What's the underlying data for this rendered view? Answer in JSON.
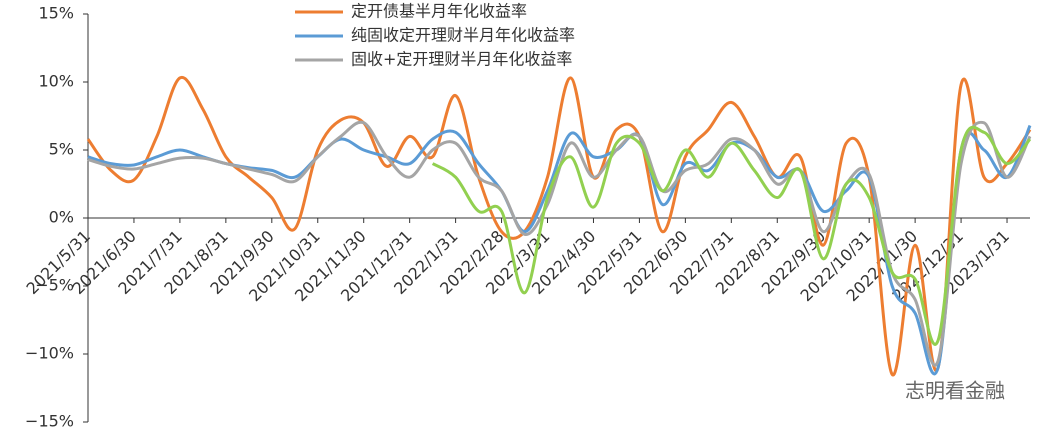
{
  "chart_data": {
    "type": "line",
    "categories": [
      "2021/5/31",
      null,
      "2021/6/30",
      null,
      "2021/7/31",
      null,
      "2021/8/31",
      null,
      "2021/9/30",
      null,
      "2021/10/31",
      null,
      "2021/11/30",
      null,
      "2021/12/31",
      null,
      "2022/1/31",
      null,
      "2022/2/28",
      null,
      "2022/3/31",
      null,
      "2022/4/30",
      null,
      "2022/5/31",
      null,
      "2022/6/30",
      null,
      "2022/7/31",
      null,
      "2022/8/31",
      null,
      "2022/9/30",
      null,
      "2022/10/31",
      null,
      "2022/11/30",
      null,
      "2022/12/31",
      null,
      "2023/1/31",
      null
    ],
    "series": [
      {
        "name": "定开债基半月年化收益率",
        "color": "#ed7d31",
        "values": [
          5.8,
          3.5,
          2.8,
          6,
          10.3,
          8,
          4.5,
          3,
          1.5,
          -0.8,
          5,
          7.2,
          7,
          3.8,
          6,
          4.5,
          9,
          3,
          -1,
          -1,
          3,
          10.3,
          3,
          6.5,
          6,
          -1,
          4.5,
          6.5,
          8.5,
          6,
          3,
          4.5,
          -2,
          5.5,
          3,
          -11.5,
          -2,
          -11,
          9.8,
          3,
          4,
          6.5
        ]
      },
      {
        "name": "纯固收定开理财半月年化收益率",
        "color": "#5b9bd5",
        "values": [
          4.5,
          4,
          3.9,
          4.5,
          5,
          4.5,
          4,
          3.7,
          3.5,
          3,
          4.5,
          5.8,
          5,
          4.5,
          4,
          5.8,
          6.3,
          4,
          2,
          -1,
          2,
          6.2,
          4.5,
          5,
          6,
          1,
          4,
          3.5,
          5.5,
          5,
          3,
          3.5,
          0.5,
          2,
          3,
          -5,
          -7,
          -11,
          5,
          5,
          3,
          6.8
        ]
      },
      {
        "name": "固收+定开理财半月年化收益率",
        "color": "#a5a5a5",
        "values": [
          4.3,
          3.8,
          3.6,
          4,
          4.4,
          4.4,
          4,
          3.6,
          3.2,
          2.7,
          4.5,
          6,
          7,
          4.5,
          3,
          5,
          5.5,
          3,
          2,
          -1.2,
          1,
          5.5,
          3,
          5,
          6,
          2,
          3.5,
          4,
          5.8,
          5,
          2.5,
          3.5,
          -1,
          2.5,
          3.2,
          -4,
          -6,
          -10.5,
          4,
          7,
          3,
          6
        ]
      },
      {
        "color": "#92d050",
        "values": [
          null,
          null,
          null,
          null,
          null,
          null,
          null,
          null,
          null,
          null,
          null,
          null,
          null,
          null,
          null,
          4,
          3,
          0.5,
          0.5,
          -5.5,
          1.5,
          4.5,
          0.8,
          5.5,
          5.5,
          2,
          5,
          3,
          5.5,
          3.5,
          1.5,
          3.5,
          -3,
          2.5,
          1.5,
          -4,
          -4.5,
          -9,
          5,
          6.3,
          4,
          5.8
        ]
      }
    ],
    "ylim": [
      -15,
      15
    ],
    "yticks": [
      {
        "value": -15,
        "label": "−15%"
      },
      {
        "value": -10,
        "label": "−10%"
      },
      {
        "value": -5,
        "label": "−5%"
      },
      {
        "value": 0,
        "label": "0%"
      },
      {
        "value": 5,
        "label": "5%"
      },
      {
        "value": 10,
        "label": "10%"
      },
      {
        "value": 15,
        "label": "15%"
      }
    ],
    "legend": "upper center",
    "watermark": "志明看金融"
  }
}
